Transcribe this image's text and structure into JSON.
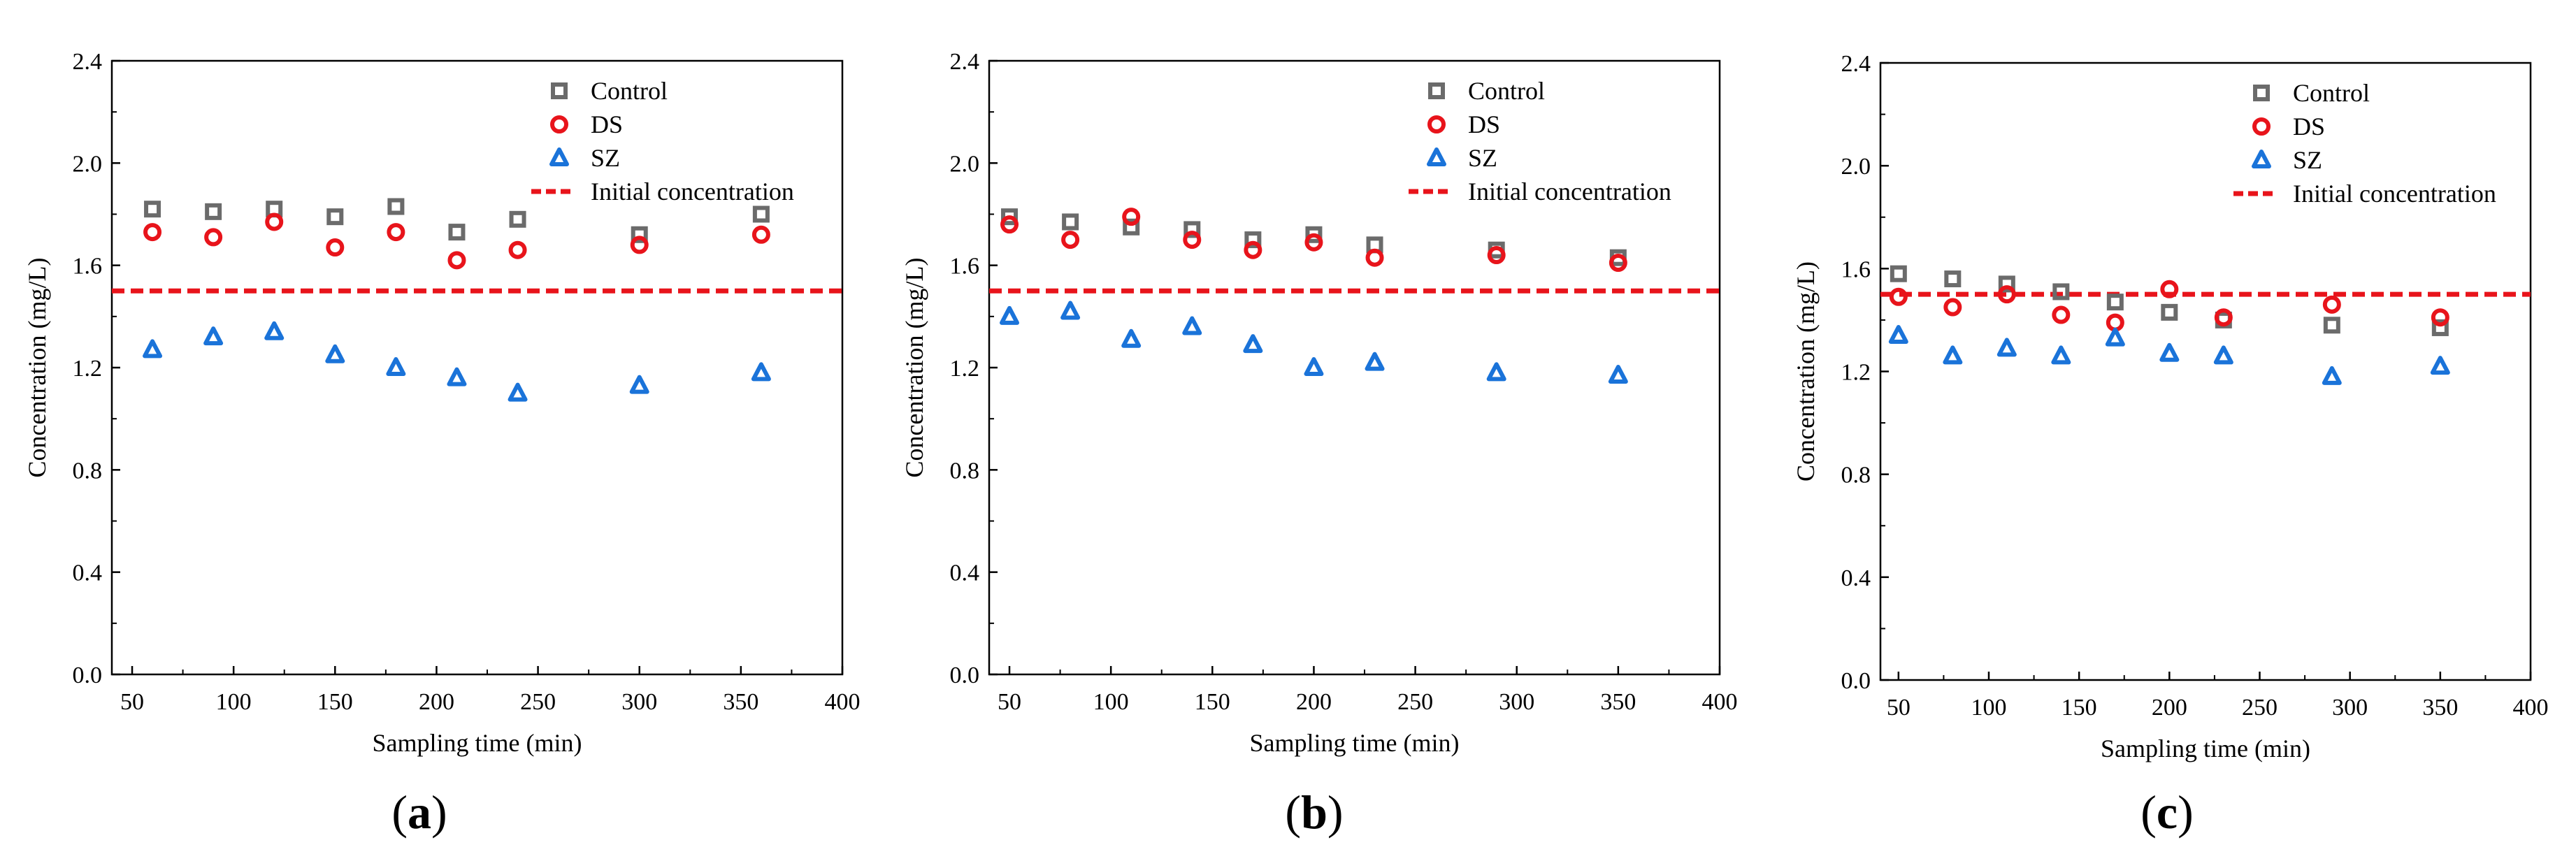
{
  "chart_data": [
    {
      "type": "scatter",
      "panel_label": "a",
      "xlabel": "Sampling time (min)",
      "ylabel": "Concentration (mg/L)",
      "xlim": [
        40,
        400
      ],
      "ylim": [
        0.0,
        2.4
      ],
      "xticks": [
        "50",
        "100",
        "150",
        "200",
        "250",
        "300",
        "350",
        "400"
      ],
      "yticks": [
        "0.0",
        "0.4",
        "0.8",
        "1.2",
        "1.6",
        "2.0",
        "2.4"
      ],
      "legend_position": "top-right",
      "reference_line": {
        "name": "Initial concentration",
        "value": 1.5,
        "color": "#e8141b"
      },
      "series": [
        {
          "name": "Control",
          "marker": "square",
          "color": "#6b6b6b",
          "x": [
            60,
            90,
            120,
            150,
            180,
            210,
            240,
            300,
            360
          ],
          "y": [
            1.82,
            1.81,
            1.82,
            1.79,
            1.83,
            1.73,
            1.78,
            1.72,
            1.8
          ]
        },
        {
          "name": "DS",
          "marker": "circle",
          "color": "#e8141b",
          "x": [
            60,
            90,
            120,
            150,
            180,
            210,
            240,
            300,
            360
          ],
          "y": [
            1.73,
            1.71,
            1.77,
            1.67,
            1.73,
            1.62,
            1.66,
            1.68,
            1.72
          ]
        },
        {
          "name": "SZ",
          "marker": "triangle",
          "color": "#1a73d9",
          "x": [
            60,
            90,
            120,
            150,
            180,
            210,
            240,
            300,
            360
          ],
          "y": [
            1.27,
            1.32,
            1.34,
            1.25,
            1.2,
            1.16,
            1.1,
            1.13,
            1.18
          ]
        }
      ]
    },
    {
      "type": "scatter",
      "panel_label": "b",
      "xlabel": "Sampling time (min)",
      "ylabel": "Concentration (mg/L)",
      "xlim": [
        40,
        400
      ],
      "ylim": [
        0.0,
        2.4
      ],
      "xticks": [
        "50",
        "100",
        "150",
        "200",
        "250",
        "300",
        "350",
        "400"
      ],
      "yticks": [
        "0.0",
        "0.4",
        "0.8",
        "1.2",
        "1.6",
        "2.0",
        "2.4"
      ],
      "legend_position": "top-right",
      "reference_line": {
        "name": "Initial concentration",
        "value": 1.5,
        "color": "#e8141b"
      },
      "series": [
        {
          "name": "Control",
          "marker": "square",
          "color": "#6b6b6b",
          "x": [
            50,
            80,
            110,
            140,
            170,
            200,
            230,
            290,
            350
          ],
          "y": [
            1.79,
            1.77,
            1.75,
            1.74,
            1.7,
            1.72,
            1.68,
            1.66,
            1.63
          ]
        },
        {
          "name": "DS",
          "marker": "circle",
          "color": "#e8141b",
          "x": [
            50,
            80,
            110,
            140,
            170,
            200,
            230,
            290,
            350
          ],
          "y": [
            1.76,
            1.7,
            1.79,
            1.7,
            1.66,
            1.69,
            1.63,
            1.64,
            1.61
          ]
        },
        {
          "name": "SZ",
          "marker": "triangle",
          "color": "#1a73d9",
          "x": [
            50,
            80,
            110,
            140,
            170,
            200,
            230,
            290,
            350
          ],
          "y": [
            1.4,
            1.42,
            1.31,
            1.36,
            1.29,
            1.2,
            1.22,
            1.18,
            1.17
          ]
        }
      ]
    },
    {
      "type": "scatter",
      "panel_label": "c",
      "xlabel": "Sampling time (min)",
      "ylabel": "Concentration (mg/L)",
      "xlim": [
        40,
        400
      ],
      "ylim": [
        0.0,
        2.4
      ],
      "xticks": [
        "50",
        "100",
        "150",
        "200",
        "250",
        "300",
        "350",
        "400"
      ],
      "yticks": [
        "0.0",
        "0.4",
        "0.8",
        "1.2",
        "1.6",
        "2.0",
        "2.4"
      ],
      "legend_position": "top-right",
      "reference_line": {
        "name": "Initial concentration",
        "value": 1.5,
        "color": "#e8141b"
      },
      "series": [
        {
          "name": "Control",
          "marker": "square",
          "color": "#6b6b6b",
          "x": [
            50,
            80,
            110,
            140,
            170,
            200,
            230,
            290,
            350
          ],
          "y": [
            1.58,
            1.56,
            1.54,
            1.51,
            1.47,
            1.43,
            1.4,
            1.38,
            1.37
          ]
        },
        {
          "name": "DS",
          "marker": "circle",
          "color": "#e8141b",
          "x": [
            50,
            80,
            110,
            140,
            170,
            200,
            230,
            290,
            350
          ],
          "y": [
            1.49,
            1.45,
            1.5,
            1.42,
            1.39,
            1.52,
            1.41,
            1.46,
            1.41
          ]
        },
        {
          "name": "SZ",
          "marker": "triangle",
          "color": "#1a73d9",
          "x": [
            50,
            80,
            110,
            140,
            170,
            200,
            230,
            290,
            350
          ],
          "y": [
            1.34,
            1.26,
            1.29,
            1.26,
            1.33,
            1.27,
            1.26,
            1.18,
            1.22
          ]
        }
      ]
    }
  ]
}
